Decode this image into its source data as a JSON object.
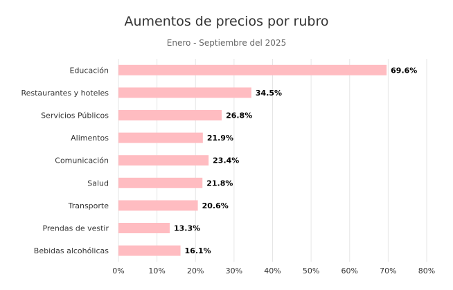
{
  "chart_data": {
    "type": "bar",
    "orientation": "horizontal",
    "title": "Aumentos de precios por rubro",
    "subtitle": "Enero - Septiembre del 2025",
    "categories": [
      "Educación",
      "Restaurantes y hoteles",
      "Servicios Públicos",
      "Alimentos",
      "Comunicación",
      "Salud",
      "Transporte",
      "Prendas de vestir",
      "Bebidas alcohólicas"
    ],
    "values": [
      69.6,
      34.5,
      26.8,
      21.9,
      23.4,
      21.8,
      20.6,
      13.3,
      16.1
    ],
    "data_labels": [
      "69.6%",
      "34.5%",
      "26.8%",
      "21.9%",
      "23.4%",
      "21.8%",
      "20.6%",
      "13.3%",
      "16.1%"
    ],
    "x_ticks": [
      "0%",
      "10%",
      "20%",
      "30%",
      "40%",
      "50%",
      "60%",
      "70%",
      "80%"
    ],
    "xlim": [
      0,
      80
    ],
    "xlabel": "",
    "ylabel": "",
    "grid": "vertical",
    "legend": "none",
    "bar_color": "#ffbcc1",
    "grid_color": "#e6e6e6"
  }
}
